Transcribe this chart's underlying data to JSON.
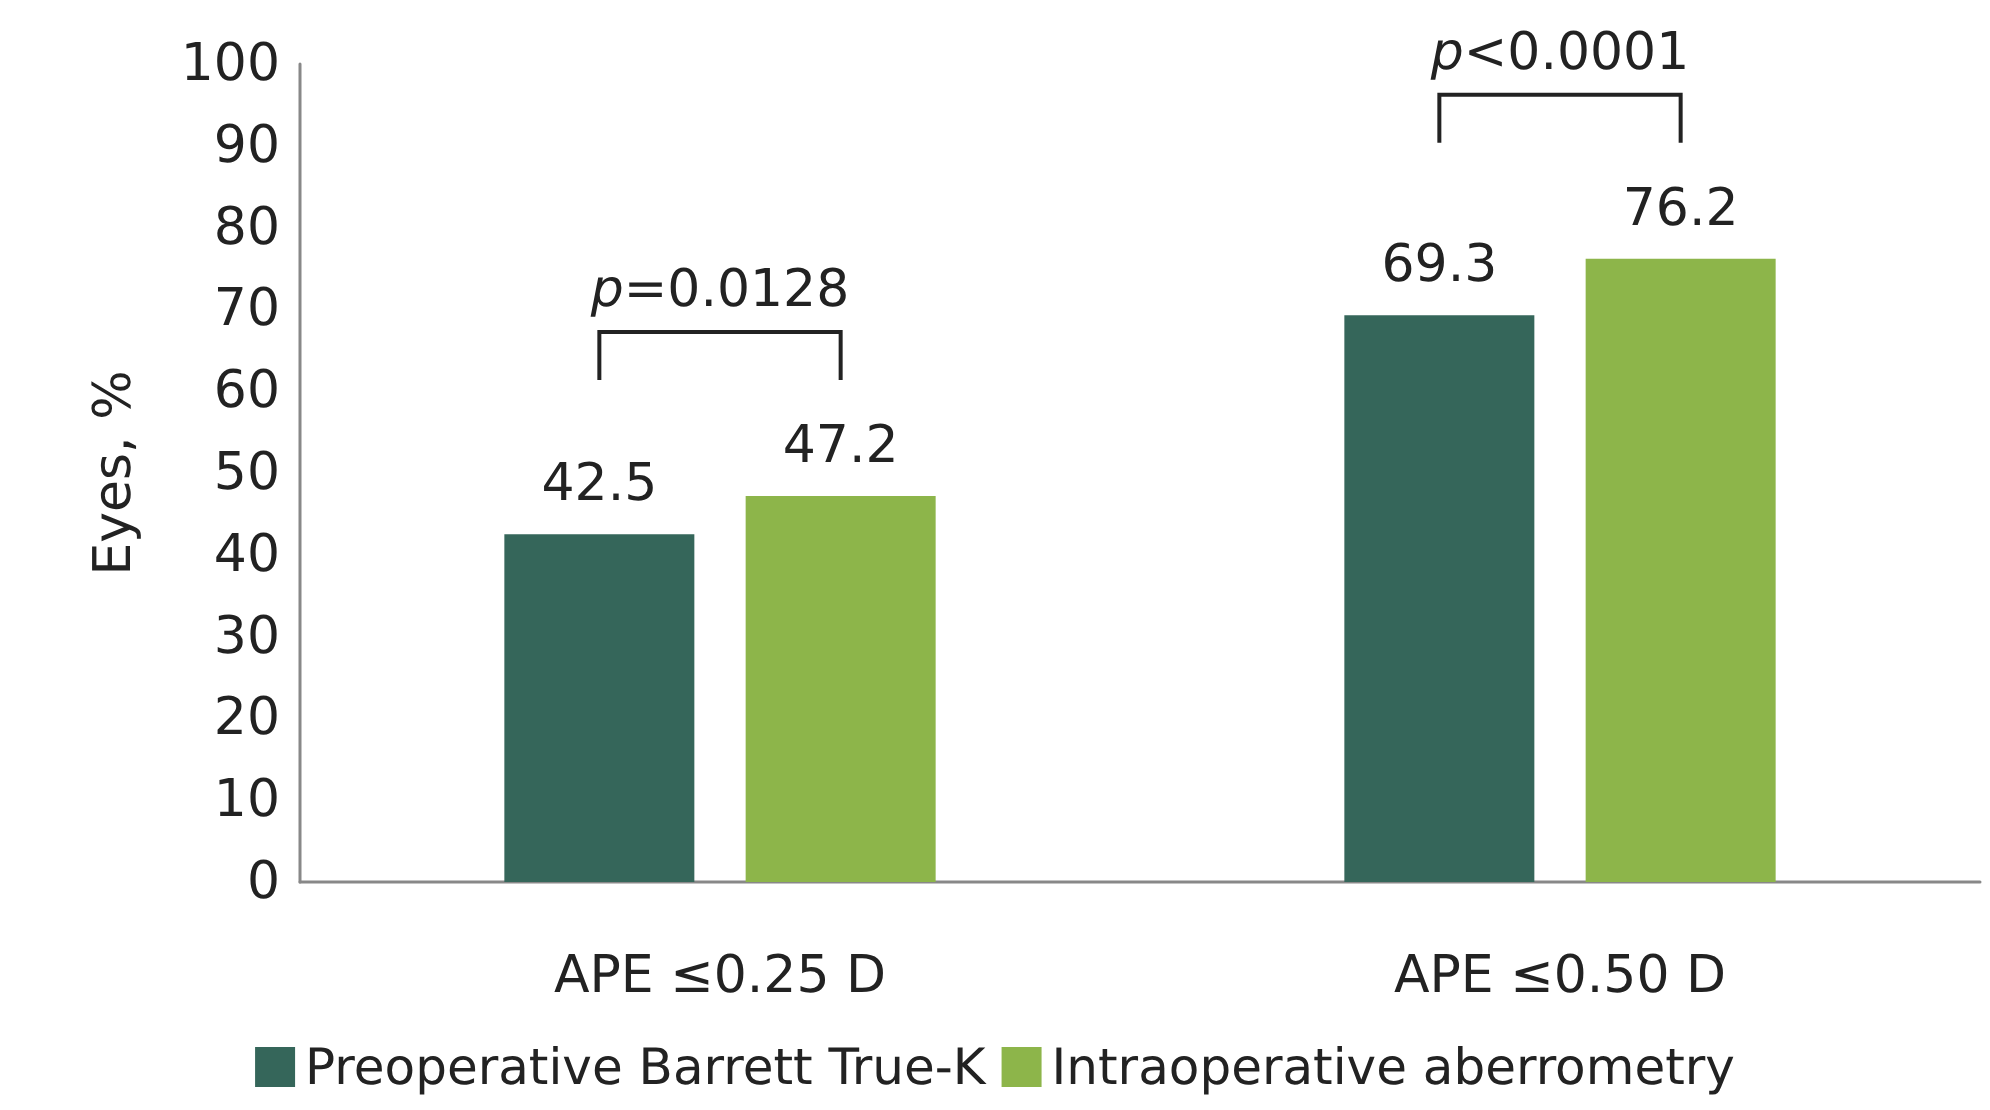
{
  "chart_data": {
    "type": "bar",
    "ylabel": "Eyes, %",
    "categories": [
      "APE ≤0.25 D",
      "APE ≤0.50 D"
    ],
    "series": [
      {
        "name": "Preoperative Barrett True-K",
        "color": "#35665a",
        "values": [
          42.5,
          69.3
        ]
      },
      {
        "name": "Intraoperative aberrometry",
        "color": "#8db54a",
        "values": [
          47.2,
          76.2
        ]
      }
    ],
    "ylim": [
      0,
      100
    ],
    "yticks": [
      0,
      10,
      20,
      30,
      40,
      50,
      60,
      70,
      80,
      90,
      100
    ],
    "grid": false,
    "legend": "bottom",
    "data_labels": true,
    "annotations": [
      "p=0.0128",
      "p<0.0001"
    ]
  }
}
